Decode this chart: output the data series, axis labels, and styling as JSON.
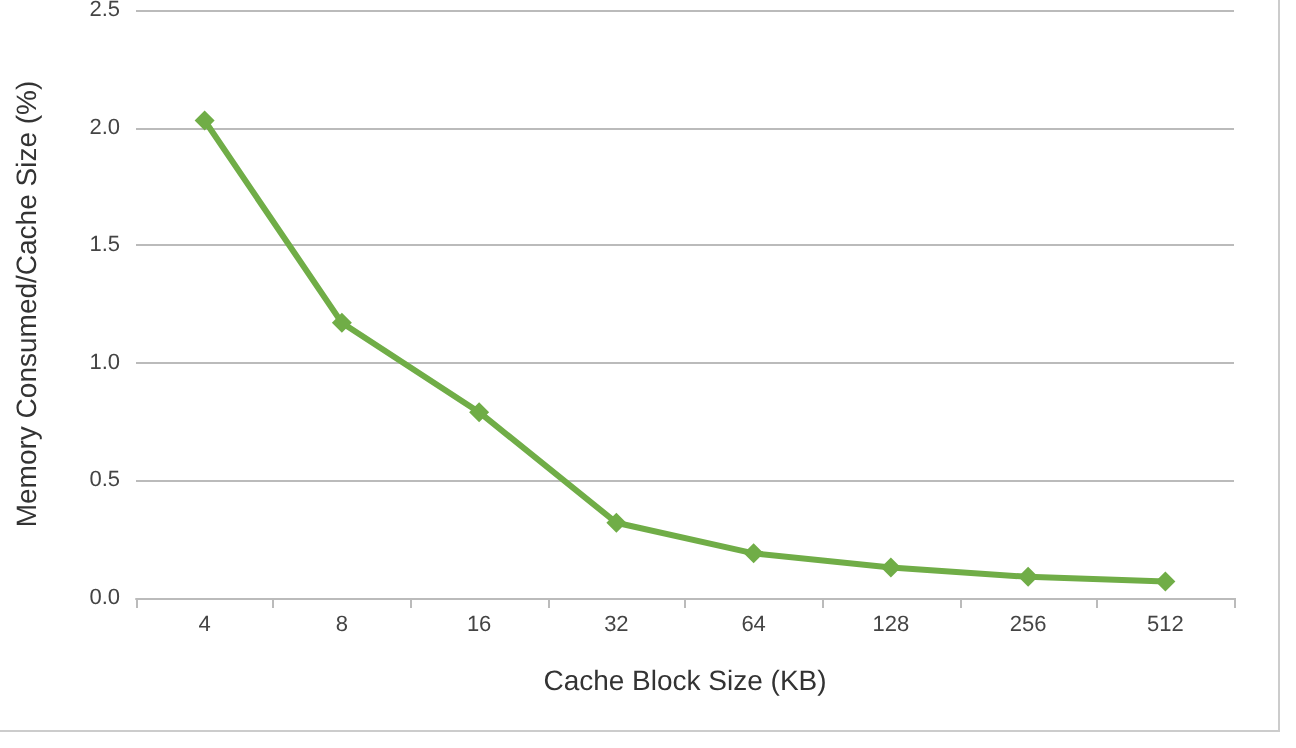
{
  "chart_data": {
    "type": "line",
    "xlabel": "Cache Block Size (KB)",
    "ylabel": "Memory Consumed/Cache Size (%)",
    "categories": [
      "4",
      "8",
      "16",
      "32",
      "64",
      "128",
      "256",
      "512"
    ],
    "series": [
      {
        "color": "#70ad47",
        "values": [
          2.03,
          1.17,
          0.79,
          0.32,
          0.19,
          0.13,
          0.09,
          0.07
        ]
      }
    ],
    "ylim": [
      0,
      2.5
    ],
    "yticks": [
      {
        "value": 0,
        "label": "0.0"
      },
      {
        "value": 0.5,
        "label": "0.5"
      },
      {
        "value": 1,
        "label": "1.0"
      },
      {
        "value": 1.5,
        "label": "1.5"
      },
      {
        "value": 2,
        "label": "2.0"
      },
      {
        "value": 2.5,
        "label": "2.5"
      }
    ],
    "grid": "y",
    "marker": "diamond",
    "line_style": "solid"
  }
}
